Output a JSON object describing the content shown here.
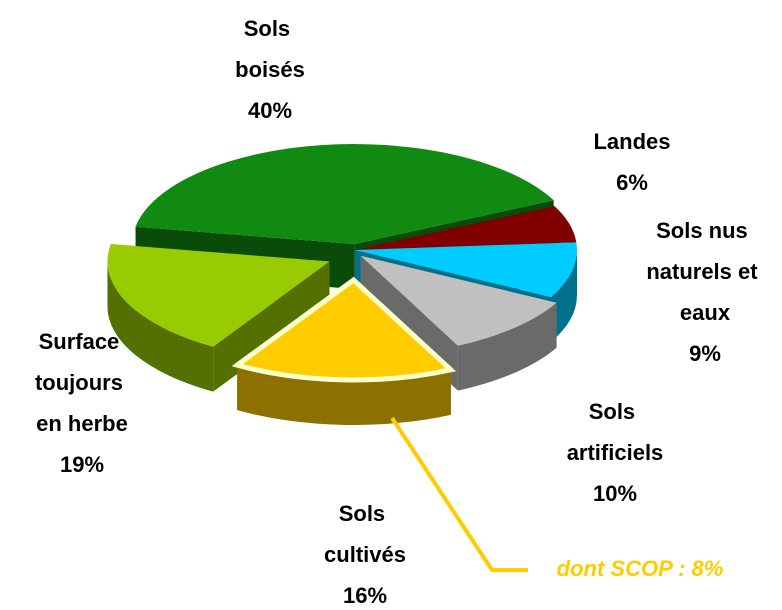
{
  "chart_data": {
    "type": "pie",
    "categories": [
      "Sols boisés",
      "Landes",
      "Sols nus naturels et eaux",
      "Sols artificiels",
      "Sols cultivés",
      "Surface toujours en herbe"
    ],
    "values": [
      40,
      6,
      9,
      10,
      16,
      19
    ],
    "value_labels": [
      "40%",
      "6%",
      "9%",
      "10%",
      "16%",
      "19%"
    ],
    "colors": [
      "#118a11",
      "#800000",
      "#00ccff",
      "#c0c0c0",
      "#ffcc00",
      "#99cc00"
    ],
    "annotation": "dont SCOP : 8%"
  }
}
